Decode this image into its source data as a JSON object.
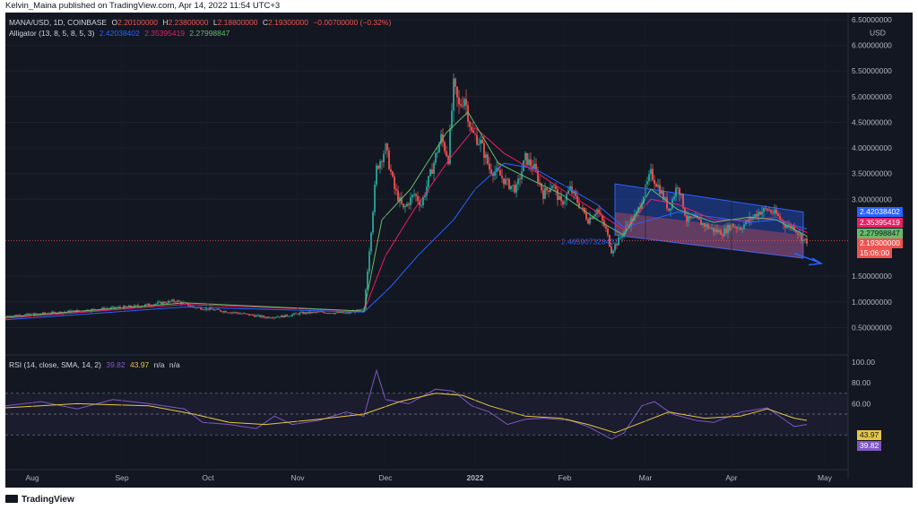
{
  "header": {
    "publisher_line": "Kelvin_Maina published on TradingView.com, Apr 14, 2022 11:54 UTC+3"
  },
  "legend": {
    "symbol_line": "MANA/USD, 1D, COINBASE",
    "ohlc": {
      "o_label": "O",
      "o": "2.20100000",
      "h_label": "H",
      "h": "2.23800000",
      "l_label": "L",
      "l": "2.18800000",
      "c_label": "C",
      "c": "2.19300000",
      "change": "−0.00700000 (−0.32%)"
    },
    "alligator_label": "Alligator (13, 8, 5, 8, 5, 3)",
    "alligator_values": [
      "2.42038402",
      "2.35395419",
      "2.27998847"
    ]
  },
  "rsi_legend": {
    "label": "RSI (14, close, SMA, 14, 2)",
    "rsi": "39.82",
    "sma": "43.97",
    "n1": "n/a",
    "n2": "n/a"
  },
  "price_axis": {
    "currency": "USD",
    "ticks": [
      "6.50000000",
      "6.00000000",
      "5.50000000",
      "5.00000000",
      "4.50000000",
      "4.00000000",
      "3.50000000",
      "3.00000000",
      "1.50000000",
      "1.00000000",
      "0.50000000"
    ]
  },
  "badges": {
    "jaw": "2.42038402",
    "teeth": "2.35395419",
    "lips": "2.27998847",
    "price": "2.19300000",
    "countdown": "15:06:00",
    "rsi_sma": "43.97",
    "rsi": "39.82"
  },
  "rsi_axis": {
    "ticks": [
      "100.00",
      "80.00",
      "60.00"
    ]
  },
  "x_axis": {
    "ticks": [
      "Aug",
      "Sep",
      "Oct",
      "Nov",
      "Dec",
      "2022",
      "Feb",
      "Mar",
      "Apr",
      "May"
    ]
  },
  "channel_label": "2.465907328431",
  "footer": {
    "brand": "TradingView"
  },
  "colors": {
    "bg": "#131722",
    "up": "#26a69a",
    "down": "#ef5350",
    "jaw": "#2962ff",
    "teeth": "#e91e63",
    "lips": "#66bb6a",
    "rsi": "#7e57c2",
    "rsi_sma": "#e5c542"
  },
  "chart_data": [
    {
      "type": "candlestick",
      "title": "MANA/USD, 1D, COINBASE",
      "ylabel": "USD",
      "ylim": [
        0,
        6.5
      ],
      "x_ticks": [
        "Aug",
        "Sep",
        "Oct",
        "Nov",
        "Dec",
        "2022",
        "Feb",
        "Mar",
        "Apr",
        "May"
      ],
      "close_path": [
        [
          0,
          0.72
        ],
        [
          25,
          0.78
        ],
        [
          50,
          0.85
        ],
        [
          75,
          0.92
        ],
        [
          95,
          1.02
        ],
        [
          105,
          0.9
        ],
        [
          115,
          0.85
        ],
        [
          130,
          0.78
        ],
        [
          145,
          0.7
        ],
        [
          155,
          0.72
        ],
        [
          165,
          0.78
        ],
        [
          175,
          0.8
        ],
        [
          190,
          0.78
        ],
        [
          200,
          0.85
        ],
        [
          207,
          3.6
        ],
        [
          212,
          4.0
        ],
        [
          217,
          3.2
        ],
        [
          222,
          2.8
        ],
        [
          228,
          3.1
        ],
        [
          232,
          2.9
        ],
        [
          238,
          3.6
        ],
        [
          243,
          4.2
        ],
        [
          247,
          3.8
        ],
        [
          250,
          5.2
        ],
        [
          253,
          4.8
        ],
        [
          256,
          5.0
        ],
        [
          260,
          4.3
        ],
        [
          265,
          4.1
        ],
        [
          270,
          3.6
        ],
        [
          275,
          3.5
        ],
        [
          280,
          3.3
        ],
        [
          285,
          3.2
        ],
        [
          290,
          3.8
        ],
        [
          295,
          3.6
        ],
        [
          300,
          3.1
        ],
        [
          305,
          3.3
        ],
        [
          310,
          2.9
        ],
        [
          315,
          3.2
        ],
        [
          320,
          2.9
        ],
        [
          325,
          2.6
        ],
        [
          330,
          2.8
        ],
        [
          335,
          2.4
        ],
        [
          338,
          2.0
        ],
        [
          342,
          2.2
        ],
        [
          347,
          2.5
        ],
        [
          352,
          2.7
        ],
        [
          356,
          3.1
        ],
        [
          360,
          3.5
        ],
        [
          365,
          3.2
        ],
        [
          370,
          2.8
        ],
        [
          375,
          3.3
        ],
        [
          380,
          2.6
        ],
        [
          385,
          2.6
        ],
        [
          390,
          2.5
        ],
        [
          395,
          2.4
        ],
        [
          400,
          2.35
        ],
        [
          405,
          2.5
        ],
        [
          410,
          2.45
        ],
        [
          415,
          2.6
        ],
        [
          420,
          2.75
        ],
        [
          425,
          2.8
        ],
        [
          430,
          2.7
        ],
        [
          435,
          2.5
        ],
        [
          440,
          2.45
        ],
        [
          445,
          2.2
        ],
        [
          447,
          2.19
        ]
      ],
      "alligator": {
        "jaw": [
          [
            0,
            0.65
          ],
          [
            100,
            0.9
          ],
          [
            200,
            0.8
          ],
          [
            215,
            1.3
          ],
          [
            230,
            1.9
          ],
          [
            250,
            2.6
          ],
          [
            262,
            3.2
          ],
          [
            278,
            3.7
          ],
          [
            295,
            3.6
          ],
          [
            310,
            3.3
          ],
          [
            330,
            2.9
          ],
          [
            345,
            2.45
          ],
          [
            360,
            2.6
          ],
          [
            375,
            2.75
          ],
          [
            395,
            2.65
          ],
          [
            415,
            2.55
          ],
          [
            430,
            2.6
          ],
          [
            447,
            2.42
          ]
        ],
        "teeth": [
          [
            0,
            0.68
          ],
          [
            100,
            0.95
          ],
          [
            200,
            0.82
          ],
          [
            212,
            1.9
          ],
          [
            228,
            2.8
          ],
          [
            248,
            3.8
          ],
          [
            262,
            4.4
          ],
          [
            278,
            3.9
          ],
          [
            295,
            3.55
          ],
          [
            310,
            3.2
          ],
          [
            330,
            2.75
          ],
          [
            345,
            2.4
          ],
          [
            360,
            3.0
          ],
          [
            375,
            2.9
          ],
          [
            395,
            2.6
          ],
          [
            415,
            2.6
          ],
          [
            430,
            2.65
          ],
          [
            447,
            2.35
          ]
        ],
        "lips": [
          [
            0,
            0.7
          ],
          [
            100,
            0.98
          ],
          [
            200,
            0.82
          ],
          [
            210,
            2.6
          ],
          [
            226,
            3.2
          ],
          [
            246,
            4.3
          ],
          [
            258,
            4.7
          ],
          [
            275,
            3.7
          ],
          [
            295,
            3.35
          ],
          [
            310,
            3.1
          ],
          [
            330,
            2.6
          ],
          [
            345,
            2.3
          ],
          [
            360,
            3.2
          ],
          [
            375,
            2.8
          ],
          [
            395,
            2.55
          ],
          [
            415,
            2.65
          ],
          [
            430,
            2.6
          ],
          [
            447,
            2.28
          ]
        ]
      },
      "last": {
        "open": 2.201,
        "high": 2.238,
        "low": 2.188,
        "close": 2.193,
        "change": -0.007,
        "change_pct": -0.32
      }
    },
    {
      "type": "line",
      "title": "RSI (14, close, SMA, 14, 2)",
      "ylim": [
        0,
        100
      ],
      "series": [
        {
          "name": "RSI",
          "values": [
            [
              0,
              58
            ],
            [
              20,
              62
            ],
            [
              40,
              55
            ],
            [
              60,
              64
            ],
            [
              80,
              60
            ],
            [
              100,
              55
            ],
            [
              110,
              42
            ],
            [
              125,
              40
            ],
            [
              140,
              36
            ],
            [
              150,
              48
            ],
            [
              160,
              40
            ],
            [
              175,
              44
            ],
            [
              190,
              52
            ],
            [
              200,
              48
            ],
            [
              207,
              92
            ],
            [
              212,
              64
            ],
            [
              225,
              60
            ],
            [
              240,
              74
            ],
            [
              250,
              72
            ],
            [
              260,
              58
            ],
            [
              270,
              52
            ],
            [
              280,
              40
            ],
            [
              290,
              45
            ],
            [
              300,
              46
            ],
            [
              315,
              44
            ],
            [
              325,
              38
            ],
            [
              338,
              26
            ],
            [
              345,
              32
            ],
            [
              355,
              58
            ],
            [
              362,
              62
            ],
            [
              372,
              50
            ],
            [
              385,
              44
            ],
            [
              395,
              42
            ],
            [
              410,
              52
            ],
            [
              425,
              56
            ],
            [
              440,
              38
            ],
            [
              447,
              40
            ]
          ]
        },
        {
          "name": "RSI SMA",
          "values": [
            [
              0,
              56
            ],
            [
              40,
              60
            ],
            [
              80,
              58
            ],
            [
              105,
              50
            ],
            [
              125,
              42
            ],
            [
              145,
              40
            ],
            [
              175,
              45
            ],
            [
              200,
              50
            ],
            [
              220,
              62
            ],
            [
              240,
              70
            ],
            [
              255,
              68
            ],
            [
              270,
              58
            ],
            [
              290,
              48
            ],
            [
              310,
              46
            ],
            [
              325,
              40
            ],
            [
              340,
              32
            ],
            [
              355,
              42
            ],
            [
              370,
              52
            ],
            [
              390,
              46
            ],
            [
              410,
              48
            ],
            [
              425,
              55
            ],
            [
              440,
              46
            ],
            [
              447,
              44
            ]
          ]
        }
      ],
      "levels": [
        70,
        50,
        30
      ]
    }
  ]
}
